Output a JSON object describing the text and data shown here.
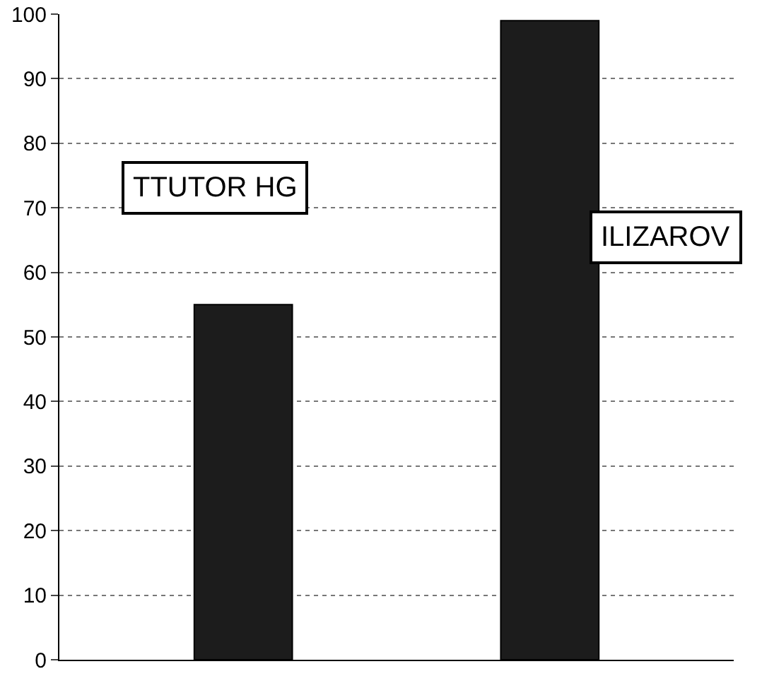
{
  "chart_data": {
    "type": "bar",
    "categories": [
      "TTUTOR HG",
      "ILIZAROV"
    ],
    "values": [
      55,
      99
    ],
    "color": "#1c1c1c",
    "ylim": [
      0,
      100
    ],
    "yticks": [
      0,
      10,
      20,
      30,
      40,
      50,
      60,
      70,
      80,
      90,
      100
    ],
    "grid": "y",
    "tick_labels": "y"
  }
}
